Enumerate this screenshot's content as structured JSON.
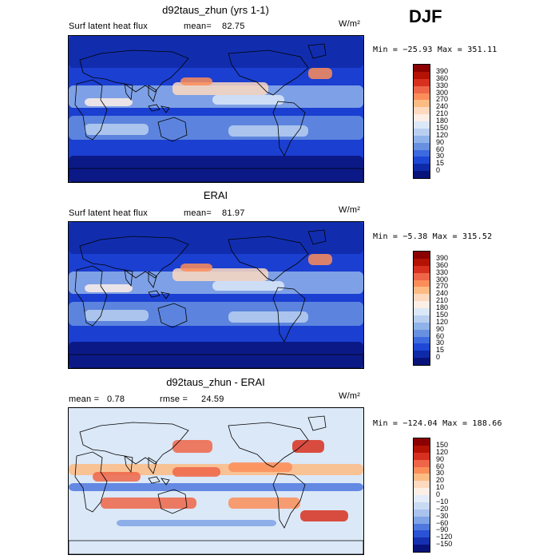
{
  "season": "DJF",
  "panels": [
    {
      "title": "d92taus_zhun (yrs 1-1)",
      "subtitle_left": "Surf latent heat flux",
      "stat_label": "mean=",
      "stat_value": "82.75",
      "units": "W/m²",
      "minmax": "Min = −25.93 Max = 351.11",
      "colorbar_labels": [
        "390",
        "360",
        "330",
        "300",
        "270",
        "240",
        "210",
        "180",
        "150",
        "120",
        "90",
        "60",
        "30",
        "15",
        "0"
      ],
      "colorbar_colors": [
        "#8b0000",
        "#b31204",
        "#d7301f",
        "#ef6548",
        "#fc8d59",
        "#fdbb84",
        "#fdd9c0",
        "#fdeee6",
        "#dbe8f7",
        "#b8cff0",
        "#8fb2ea",
        "#6790e0",
        "#3e6ae0",
        "#1f47d6",
        "#0f2aa8",
        "#08137a"
      ],
      "map_palette": "flux"
    },
    {
      "title": "ERAI",
      "subtitle_left": "Surf latent heat flux",
      "stat_label": "mean=",
      "stat_value": "81.97",
      "units": "W/m²",
      "minmax": "Min = −5.38 Max = 315.52",
      "colorbar_labels": [
        "390",
        "360",
        "330",
        "300",
        "270",
        "240",
        "210",
        "180",
        "150",
        "120",
        "90",
        "60",
        "30",
        "15",
        "0"
      ],
      "colorbar_colors": [
        "#8b0000",
        "#b31204",
        "#d7301f",
        "#ef6548",
        "#fc8d59",
        "#fdbb84",
        "#fdd9c0",
        "#fdeee6",
        "#dbe8f7",
        "#b8cff0",
        "#8fb2ea",
        "#6790e0",
        "#3e6ae0",
        "#1f47d6",
        "#0f2aa8",
        "#08137a"
      ],
      "map_palette": "flux"
    },
    {
      "title": "d92taus_zhun - ERAI",
      "subtitle_left": "mean =   0.78",
      "stat_label": "rmse =",
      "stat_value": "24.59",
      "units": "W/m²",
      "minmax": "Min = −124.04 Max = 188.66",
      "colorbar_labels": [
        "150",
        "120",
        "90",
        "60",
        "30",
        "20",
        "10",
        "0",
        "−10",
        "−20",
        "−30",
        "−60",
        "−90",
        "−120",
        "−150"
      ],
      "colorbar_colors": [
        "#8b0000",
        "#b31204",
        "#d7301f",
        "#ef6548",
        "#fc8d59",
        "#fdbb84",
        "#fdd9c0",
        "#fdeee6",
        "#e3ecf8",
        "#c9dbf3",
        "#a9c3ee",
        "#7fa3e6",
        "#4f78de",
        "#2a52d4",
        "#1530b0",
        "#08137a"
      ],
      "map_palette": "diff"
    }
  ]
}
